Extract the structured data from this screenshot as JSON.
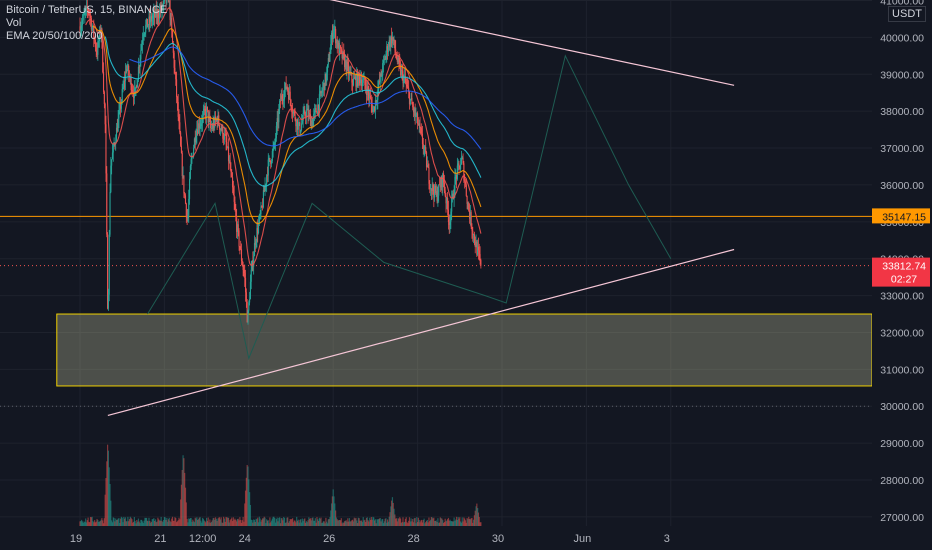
{
  "legend": {
    "symbol": "Bitcoin / TetherUS, 15, BINANCE",
    "volume": "Vol",
    "ema": "EMA 20/50/100/200"
  },
  "currency": "USDT",
  "colors": {
    "background": "#131722",
    "grid": "#1e222d",
    "axis_text": "#b2b5be",
    "candle_up": "#26a69a",
    "candle_down": "#ef5350",
    "ema20": "#ef5350",
    "ema50": "#ff9800",
    "ema100": "#26c6da",
    "ema200": "#2962ff",
    "level_line": "#ff9800",
    "zone_fill": "#c8c8a0",
    "zone_border": "#f0d000",
    "trendline": "#f5c6d6",
    "projection": "#1e5c52"
  },
  "chart_data": {
    "type": "candlestick",
    "y_axis": {
      "ticks": [
        27000,
        28000,
        29000,
        30000,
        31000,
        32000,
        33000,
        34000,
        35000,
        36000,
        37000,
        38000,
        39000,
        40000,
        41000
      ],
      "tick_labels": [
        "27000.00",
        "28000.00",
        "29000.00",
        "30000.00",
        "31000.00",
        "32000.00",
        "33000.00",
        "34000.00",
        "35000.00",
        "36000.00",
        "37000.00",
        "38000.00",
        "39000.00",
        "40000.00",
        "41000.00"
      ],
      "range": [
        26900,
        41250
      ]
    },
    "x_axis": {
      "labels": [
        "19",
        "21",
        "12:00",
        "24",
        "26",
        "28",
        "30",
        "Jun",
        "3"
      ],
      "positions": [
        0,
        2,
        3,
        4,
        6,
        8,
        10,
        12,
        14
      ],
      "range": [
        -0.6,
        15.5
      ]
    },
    "price_path": [
      [
        0.0,
        40300
      ],
      [
        0.2,
        40800
      ],
      [
        0.4,
        39600
      ],
      [
        0.5,
        40300
      ],
      [
        0.6,
        37500
      ],
      [
        0.66,
        32300
      ],
      [
        0.72,
        36500
      ],
      [
        0.9,
        37700
      ],
      [
        1.1,
        39200
      ],
      [
        1.3,
        38400
      ],
      [
        1.5,
        40200
      ],
      [
        1.7,
        40500
      ],
      [
        1.9,
        40700
      ],
      [
        2.1,
        41100
      ],
      [
        2.25,
        39000
      ],
      [
        2.35,
        37500
      ],
      [
        2.45,
        36000
      ],
      [
        2.55,
        35000
      ],
      [
        2.62,
        36500
      ],
      [
        2.75,
        37500
      ],
      [
        2.9,
        37800
      ],
      [
        3.0,
        38000
      ],
      [
        3.1,
        37500
      ],
      [
        3.25,
        37800
      ],
      [
        3.45,
        37200
      ],
      [
        3.55,
        36500
      ],
      [
        3.7,
        35000
      ],
      [
        3.8,
        34200
      ],
      [
        3.9,
        33500
      ],
      [
        3.97,
        32300
      ],
      [
        4.05,
        33500
      ],
      [
        4.15,
        34500
      ],
      [
        4.3,
        35300
      ],
      [
        4.45,
        36500
      ],
      [
        4.6,
        37000
      ],
      [
        4.75,
        38300
      ],
      [
        4.9,
        38700
      ],
      [
        5.05,
        38000
      ],
      [
        5.2,
        37500
      ],
      [
        5.35,
        38000
      ],
      [
        5.5,
        37700
      ],
      [
        5.65,
        38200
      ],
      [
        5.85,
        39000
      ],
      [
        6.0,
        40300
      ],
      [
        6.12,
        39700
      ],
      [
        6.25,
        39400
      ],
      [
        6.45,
        38800
      ],
      [
        6.65,
        38900
      ],
      [
        6.8,
        38600
      ],
      [
        6.95,
        38000
      ],
      [
        7.1,
        38800
      ],
      [
        7.3,
        39800
      ],
      [
        7.4,
        40000
      ],
      [
        7.55,
        39200
      ],
      [
        7.7,
        38800
      ],
      [
        7.85,
        38200
      ],
      [
        8.0,
        37700
      ],
      [
        8.15,
        37000
      ],
      [
        8.3,
        36000
      ],
      [
        8.45,
        35700
      ],
      [
        8.6,
        36200
      ],
      [
        8.75,
        35000
      ],
      [
        8.9,
        36200
      ],
      [
        9.05,
        36700
      ],
      [
        9.2,
        35400
      ],
      [
        9.35,
        34500
      ],
      [
        9.5,
        33820
      ]
    ],
    "volume_axis_max": 3000,
    "volume_spikes": [
      [
        0.66,
        2600
      ],
      [
        2.45,
        2300
      ],
      [
        3.97,
        2000
      ],
      [
        6.0,
        1100
      ],
      [
        7.4,
        900
      ],
      [
        9.4,
        700
      ]
    ],
    "ema_lengths": [
      20,
      50,
      100,
      200
    ],
    "horizontal_levels": [
      {
        "price": 35147.15,
        "label": "35147.15",
        "style": "solid"
      },
      {
        "price": 33812.74,
        "label": "33812.74",
        "sublabel": "02:27",
        "style": "dotted"
      },
      {
        "price": 30000,
        "style": "dotted-grey"
      }
    ],
    "demand_zone": {
      "from": 30550,
      "to": 32500,
      "x_start": -0.55
    },
    "trendlines": [
      {
        "from": [
          4.8,
          41300
        ],
        "to": [
          15.5,
          38700
        ]
      },
      {
        "from": [
          0.66,
          29750
        ],
        "to": [
          15.5,
          34250
        ]
      }
    ],
    "projection_path": [
      [
        1.6,
        32500
      ],
      [
        3.2,
        35500
      ],
      [
        4.0,
        31300
      ],
      [
        5.5,
        35500
      ],
      [
        7.2,
        33900
      ],
      [
        9.6,
        33000
      ],
      [
        10.1,
        32800
      ],
      [
        11.5,
        39500
      ],
      [
        13.0,
        36000
      ],
      [
        14.0,
        34000
      ]
    ],
    "last_price": 33812.74,
    "countdown": "02:27"
  }
}
